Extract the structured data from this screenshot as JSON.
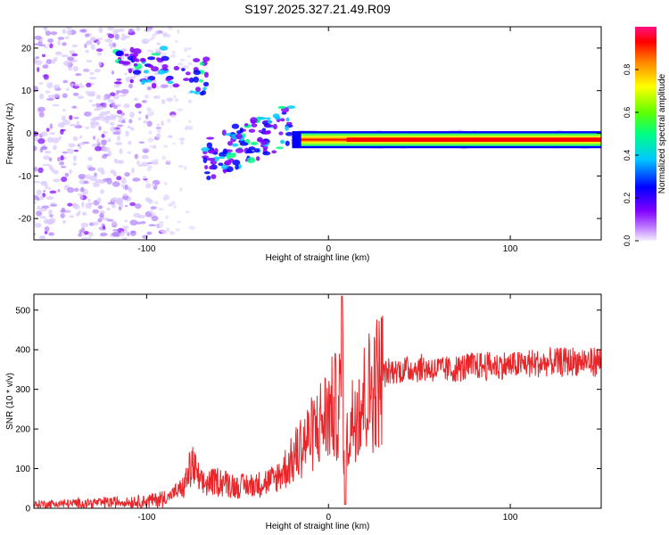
{
  "title": "S197.2025.327.21.49.R09",
  "top_chart": {
    "xlabel": "Height of straight line (km)",
    "ylabel": "Frequency (Hz)",
    "x_ticks": [
      "-100",
      "0",
      "100"
    ],
    "y_ticks": [
      "20",
      "10",
      "0",
      "-10",
      "-20"
    ]
  },
  "colorbar": {
    "label": "Normalized spectral amplitude",
    "ticks": [
      "0.0",
      "0.2",
      "0.4",
      "0.6",
      "0.8"
    ],
    "colors": [
      "#f0f0ff",
      "#8000ff",
      "#0000ff",
      "#00c0ff",
      "#00ff80",
      "#80ff00",
      "#ffff00",
      "#ff8000",
      "#ff0000",
      "#ff0080"
    ]
  },
  "bottom_chart": {
    "xlabel": "Height of straight line (km)",
    "ylabel": "SNR (10 * v/v)",
    "x_ticks": [
      "-100",
      "0",
      "100"
    ],
    "y_ticks": [
      "0",
      "100",
      "200",
      "300",
      "400",
      "500"
    ],
    "line_color": "#e8262a"
  },
  "chart_data": [
    {
      "type": "heatmap",
      "title": "S197.2025.327.21.49.R09",
      "xlabel": "Height of straight line (km)",
      "ylabel": "Frequency (Hz)",
      "xlim": [
        -162,
        150
      ],
      "ylim": [
        -25,
        25
      ],
      "zlabel": "Normalized spectral amplitude",
      "zlim": [
        0,
        1
      ],
      "features": [
        {
          "name": "noise scatter",
          "x": [
            -162,
            -90
          ],
          "y": [
            -25,
            25
          ],
          "z": 0.15
        },
        {
          "name": "upper cluster",
          "x": [
            -115,
            -65
          ],
          "y": [
            10,
            20
          ],
          "z": 0.4
        },
        {
          "name": "lower cluster",
          "x": [
            -65,
            -20
          ],
          "y": [
            -12,
            6
          ],
          "z": 0.35
        },
        {
          "name": "carrier line",
          "x": [
            -20,
            150
          ],
          "y": [
            -1.5,
            -1.5
          ],
          "z": 0.9
        }
      ]
    },
    {
      "type": "line",
      "xlabel": "Height of straight line (km)",
      "ylabel": "SNR (10 * v/v)",
      "xlim": [
        -162,
        150
      ],
      "ylim": [
        0,
        540
      ],
      "series": [
        {
          "name": "SNR",
          "x": [
            -162,
            -140,
            -120,
            -100,
            -90,
            -80,
            -75,
            -70,
            -60,
            -50,
            -40,
            -30,
            -20,
            -15,
            -10,
            -5,
            0,
            5,
            8,
            9,
            10,
            12,
            15,
            20,
            25,
            30,
            40,
            50,
            60,
            70,
            80,
            90,
            100,
            110,
            120,
            130,
            140,
            150
          ],
          "y": [
            10,
            12,
            15,
            18,
            25,
            50,
            110,
            60,
            70,
            55,
            60,
            70,
            120,
            160,
            180,
            210,
            240,
            260,
            290,
            20,
            160,
            200,
            260,
            280,
            310,
            340,
            350,
            355,
            350,
            350,
            360,
            360,
            360,
            365,
            365,
            370,
            370,
            370
          ]
        }
      ]
    }
  ]
}
